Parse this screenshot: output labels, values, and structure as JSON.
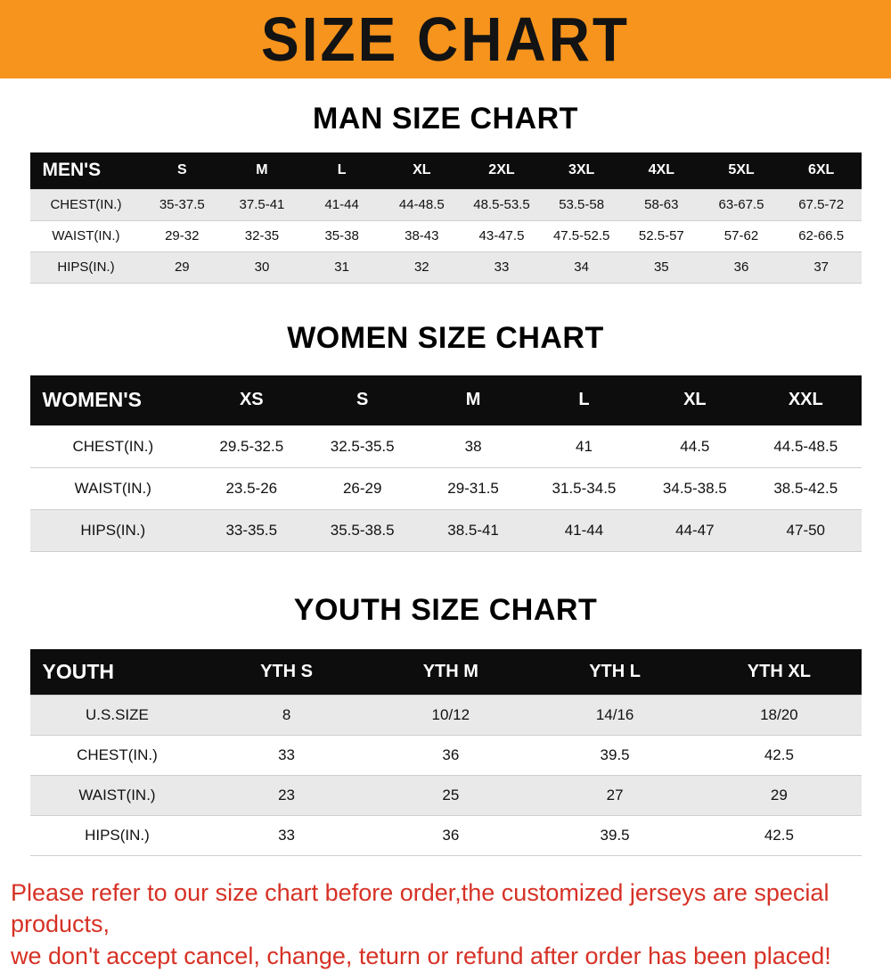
{
  "banner": {
    "title": "SIZE CHART"
  },
  "sections": [
    {
      "id": "man",
      "heading": "MAN SIZE CHART",
      "table": {
        "header": [
          "MEN'S",
          "S",
          "M",
          "L",
          "XL",
          "2XL",
          "3XL",
          "4XL",
          "5XL",
          "6XL"
        ],
        "rows": [
          [
            "CHEST(IN.)",
            "35-37.5",
            "37.5-41",
            "41-44",
            "44-48.5",
            "48.5-53.5",
            "53.5-58",
            "58-63",
            "63-67.5",
            "67.5-72"
          ],
          [
            "WAIST(IN.)",
            "29-32",
            "32-35",
            "35-38",
            "38-43",
            "43-47.5",
            "47.5-52.5",
            "52.5-57",
            "57-62",
            "62-66.5"
          ],
          [
            "HIPS(IN.)",
            "29",
            "30",
            "31",
            "32",
            "33",
            "34",
            "35",
            "36",
            "37"
          ]
        ]
      }
    },
    {
      "id": "women",
      "heading": "WOMEN SIZE CHART",
      "table": {
        "header": [
          "WOMEN'S",
          "XS",
          "S",
          "M",
          "L",
          "XL",
          "XXL"
        ],
        "rows": [
          [
            "CHEST(IN.)",
            "29.5-32.5",
            "32.5-35.5",
            "38",
            "41",
            "44.5",
            "44.5-48.5"
          ],
          [
            "WAIST(IN.)",
            "23.5-26",
            "26-29",
            "29-31.5",
            "31.5-34.5",
            "34.5-38.5",
            "38.5-42.5"
          ],
          [
            "HIPS(IN.)",
            "33-35.5",
            "35.5-38.5",
            "38.5-41",
            "41-44",
            "44-47",
            "47-50"
          ]
        ]
      }
    },
    {
      "id": "youth",
      "heading": "YOUTH SIZE CHART",
      "table": {
        "header": [
          "YOUTH",
          "YTH S",
          "YTH M",
          "YTH L",
          "YTH XL"
        ],
        "rows": [
          [
            "U.S.SIZE",
            "8",
            "10/12",
            "14/16",
            "18/20"
          ],
          [
            "CHEST(IN.)",
            "33",
            "36",
            "39.5",
            "42.5"
          ],
          [
            "WAIST(IN.)",
            "23",
            "25",
            "27",
            "29"
          ],
          [
            "HIPS(IN.)",
            "33",
            "36",
            "39.5",
            "42.5"
          ]
        ]
      }
    }
  ],
  "footer": {
    "line1": "Please refer to our size chart before order,the customized jerseys are special products,",
    "line2": "we don't accept cancel, change, teturn or refund after order has been placed!"
  },
  "colors": {
    "banner_bg": "#F7941D",
    "table_header_bg": "#0d0d0d",
    "row_stripe": "#e9e9e9",
    "footer_text": "#d63125"
  }
}
